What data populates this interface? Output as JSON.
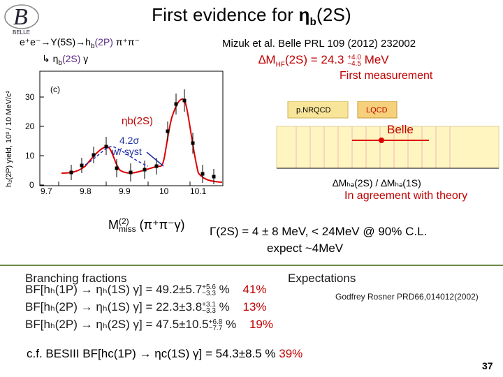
{
  "title": "First evidence for ηb(2S)",
  "title_parts": {
    "main": "First evidence for ",
    "eta": "η",
    "sub": "b",
    "tail": "(2S)"
  },
  "logo_text": "BELLE",
  "decay": {
    "line1_a": "e⁺e⁻→Υ(5S)→h",
    "line1_b": "b",
    "line1_c": "(2P)",
    "line1_d": " π⁺π⁻",
    "line2_a": "↳ η",
    "line2_b": "b",
    "line2_c": "(2S)",
    "line2_d": " γ"
  },
  "reference": "Mizuk et al. Belle PRL 109 (2012) 232002",
  "delta_m": {
    "prefix": "∆M",
    "sub": "HF",
    "state": "(2S) = 24.3",
    "plus": "+4.0",
    "minus": "−4.5",
    "unit": " MeV"
  },
  "first_measurement": "First measurement",
  "plot": {
    "panel_label": "(c)",
    "ylabel": "h₂(2P) yield, 10³ / 10 MeV/c²",
    "y_ticks": [
      "0",
      "10",
      "20",
      "30"
    ],
    "x_ticks": [
      "9.7",
      "9.8",
      "9.9",
      "10",
      "10.1"
    ],
    "peak_label": "ηb(2S)",
    "significance": "4.2σ",
    "with_syst": "w/ syst"
  },
  "theory": {
    "nrqcd": "p.NRQCD",
    "lqcd": "LQCD",
    "belle": "Belle",
    "xlabel": "∆Mₕₔ(2S) / ∆Mₕₔ(1S)"
  },
  "agreement": "In agreement with theory",
  "mmiss": {
    "main": "M",
    "sup": "(2)",
    "sub": "miss",
    "paren": " (π⁺π⁻γ)"
  },
  "width_line": "Γ(2S) = 4 ± 8 MeV,  < 24MeV @ 90% C.L.",
  "expect_line": "expect ~4MeV",
  "bf_heading": "Branching fractions",
  "exp_heading": "Expectations",
  "bf_rows": [
    {
      "text": "BF[hₕ(1P) → ηₕ(1S) γ] =  49.2±5.7",
      "plus": "+5.6",
      "minus": "−3.3",
      "pct": " %",
      "exp": "41%"
    },
    {
      "text": "BF[hₕ(2P) → ηₕ(1S) γ] =  22.3±3.8",
      "plus": "+3.1",
      "minus": "−3.3",
      "pct": " %",
      "exp": "13%"
    },
    {
      "text": "BF[hₕ(2P) → ηₕ(2S) γ] = 47.5±10.5",
      "plus": "+6.8",
      "minus": "−7.7",
      "pct": " %",
      "exp": "19%"
    }
  ],
  "rosner_ref": "Godfrey Rosner PRD66,014012(2002)",
  "besiii": {
    "text": "c.f. BESIII  BF[hᴄ(1P) → ηᴄ(1S) γ] = 54.3±8.5 %",
    "exp": "  39%"
  },
  "page_number": "37",
  "colors": {
    "red": "#c00000",
    "blue": "#1f2fa0",
    "purple": "#5b2a86",
    "separator": "#6a8a4a"
  }
}
